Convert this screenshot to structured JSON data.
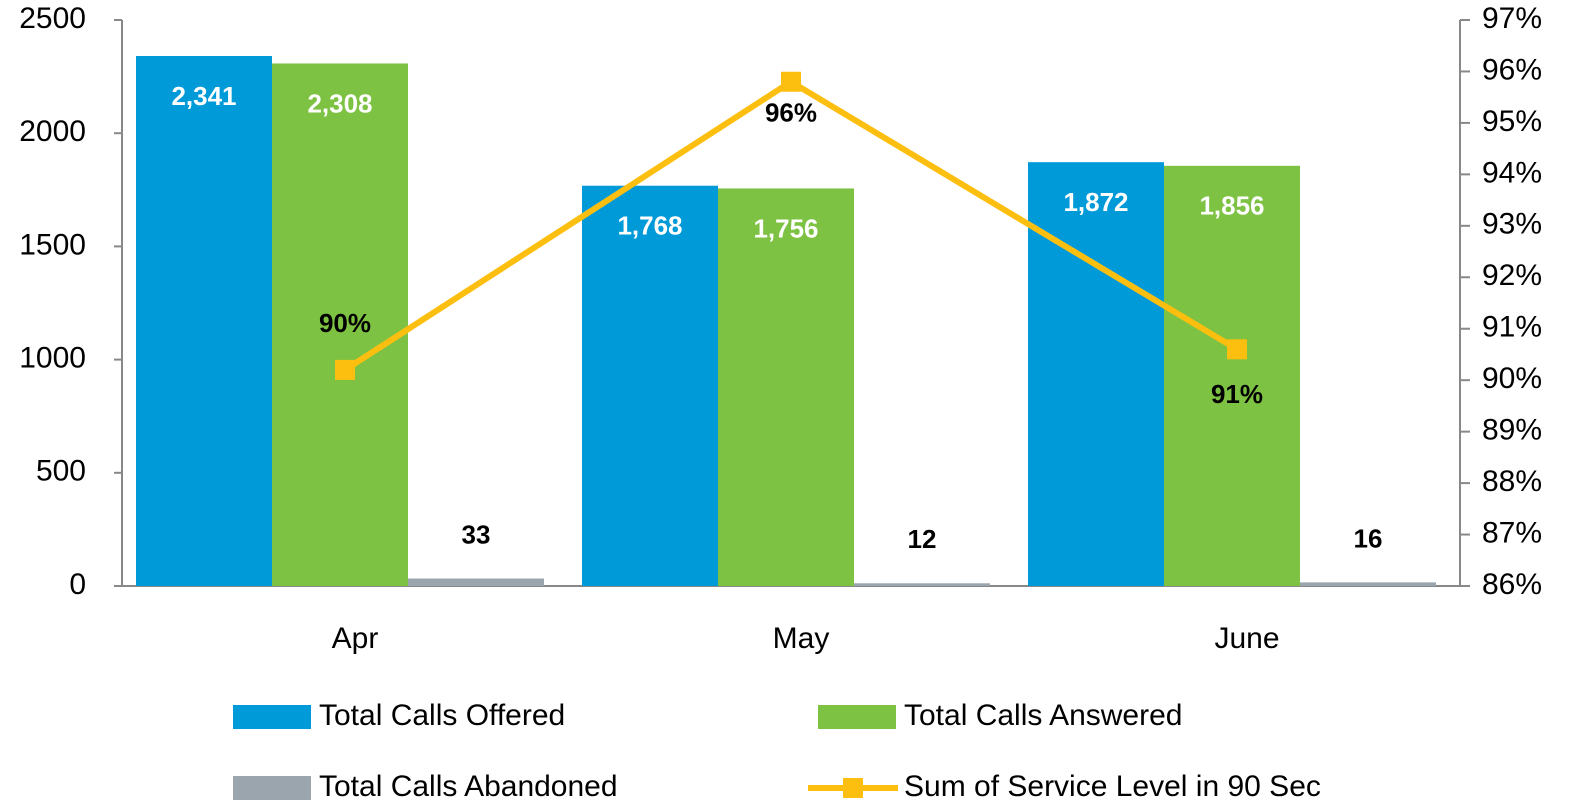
{
  "chart_data": {
    "type": "bar",
    "categories": [
      "Apr",
      "May",
      "June"
    ],
    "series": [
      {
        "name": "Total Calls Offered",
        "color": "#009ad9",
        "values": [
          2341,
          1768,
          1872
        ],
        "value_labels": [
          "2,341",
          "1,768",
          "1,872"
        ]
      },
      {
        "name": "Total Calls Answered",
        "color": "#7dc242",
        "values": [
          2308,
          1756,
          1856
        ],
        "value_labels": [
          "2,308",
          "1,756",
          "1,856"
        ]
      },
      {
        "name": "Total Calls Abandoned",
        "color": "#9aa5ad",
        "values": [
          33,
          12,
          16
        ]
      },
      {
        "name": "Sum of Service Level in 90 Sec",
        "type": "line",
        "axis": "y2",
        "color": "#fdbf0f",
        "values": [
          90.2,
          95.8,
          90.6
        ],
        "value_labels": [
          "90%",
          "96%",
          "91%"
        ]
      }
    ],
    "ylim": [
      0,
      2500
    ],
    "yticks": [
      0,
      500,
      1000,
      1500,
      2000,
      2500
    ],
    "y2lim": [
      86,
      97
    ],
    "y2ticks": [
      {
        "value": 86,
        "label": "86%"
      },
      {
        "value": 87,
        "label": "87%"
      },
      {
        "value": 88,
        "label": "88%"
      },
      {
        "value": 89,
        "label": "89%"
      },
      {
        "value": 90,
        "label": "90%"
      },
      {
        "value": 91,
        "label": "91%"
      },
      {
        "value": 92,
        "label": "92%"
      },
      {
        "value": 93,
        "label": "93%"
      },
      {
        "value": 94,
        "label": "94%"
      },
      {
        "value": 95,
        "label": "95%"
      },
      {
        "value": 96,
        "label": "96%"
      },
      {
        "value": 97,
        "label": "97%"
      }
    ],
    "legend": "bottom",
    "grid": false
  }
}
